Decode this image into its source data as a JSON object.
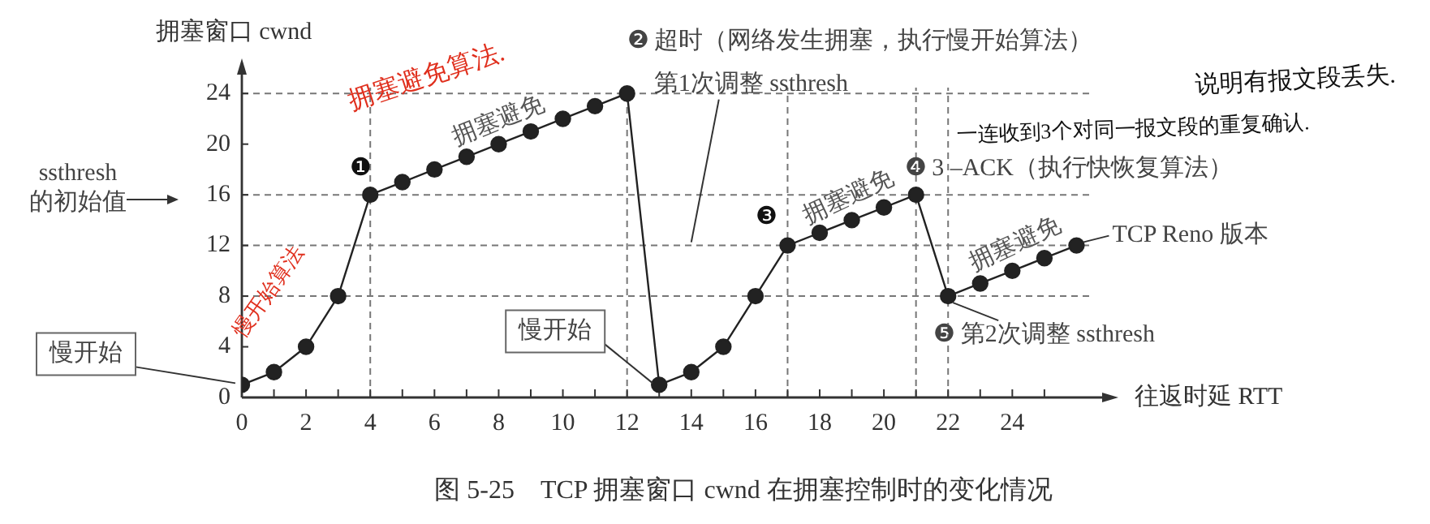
{
  "chart_data": {
    "type": "line",
    "title": "图 5-25　TCP 拥塞窗口 cwnd 在拥塞控制时的变化情况",
    "xlabel": "往返时延 RTT",
    "ylabel": "拥塞窗口 cwnd",
    "x": [
      0,
      1,
      2,
      3,
      4,
      5,
      6,
      7,
      8,
      9,
      10,
      11,
      12,
      13,
      14,
      15,
      16,
      17,
      18,
      19,
      20,
      21,
      22,
      23,
      24,
      25,
      26
    ],
    "series": [
      {
        "color": "#222222",
        "values": [
          1,
          2,
          4,
          8,
          16,
          17,
          18,
          19,
          20,
          21,
          22,
          23,
          24,
          1,
          2,
          4,
          8,
          12,
          13,
          14,
          15,
          16,
          8,
          9,
          10,
          11,
          12
        ]
      }
    ],
    "xlim": [
      0,
      27
    ],
    "xticks": [
      0,
      {
        "value": 1,
        "label": null
      },
      2,
      {
        "value": 3,
        "label": null
      },
      4,
      {
        "value": 5,
        "label": null
      },
      6,
      {
        "value": 7,
        "label": null
      },
      8,
      {
        "value": 9,
        "label": null
      },
      10,
      {
        "value": 11,
        "label": null
      },
      12,
      {
        "value": 13,
        "label": null
      },
      14,
      {
        "value": 15,
        "label": null
      },
      16,
      {
        "value": 17,
        "label": null
      },
      18,
      {
        "value": 19,
        "label": null
      },
      20,
      {
        "value": 21,
        "label": null
      },
      22,
      {
        "value": 23,
        "label": null
      },
      24,
      {
        "value": 25,
        "label": null
      }
    ],
    "ylim": [
      0,
      26
    ],
    "yticks": [
      0,
      4,
      8,
      12,
      16,
      20,
      24
    ],
    "grid": false,
    "legend": false,
    "marker": "circle",
    "line_style": "solid",
    "ref_lines": [
      {
        "axis": "y",
        "value": 24,
        "color": "#777777",
        "line_style": "dashed"
      },
      {
        "axis": "y",
        "value": 16,
        "color": "#777777",
        "line_style": "dashed"
      },
      {
        "axis": "y",
        "value": 12,
        "color": "#777777",
        "line_style": "dashed"
      },
      {
        "axis": "y",
        "value": 8,
        "color": "#777777",
        "line_style": "dashed"
      },
      {
        "axis": "x",
        "value": 4,
        "color": "#777777",
        "line_style": "dashed"
      },
      {
        "axis": "x",
        "value": 12,
        "color": "#777777",
        "line_style": "dashed"
      },
      {
        "axis": "x",
        "value": 17,
        "color": "#777777",
        "line_style": "dashed"
      },
      {
        "axis": "x",
        "value": 21,
        "color": "#777777",
        "line_style": "dashed"
      },
      {
        "axis": "x",
        "value": 22,
        "color": "#777777",
        "line_style": "dashed"
      }
    ],
    "annotations": [
      {
        "text": "❶",
        "x": 4,
        "y": 16
      },
      {
        "text": "❷ 超时（网络发生拥塞，执行慢开始算法）",
        "x": 12,
        "y": 24
      },
      {
        "text": "第1次调整 ssthresh",
        "x": 14,
        "y": 12
      },
      {
        "text": "❸",
        "x": 17,
        "y": 12
      },
      {
        "text": "❹ 3 –ACK（执行快恢复算法）",
        "x": 21,
        "y": 16
      },
      {
        "text": "❺ 第2次调整 ssthresh",
        "x": 22,
        "y": 8
      },
      {
        "text": "拥塞避免",
        "x": 8,
        "y": 20
      },
      {
        "text": "拥塞避免",
        "x": 19,
        "y": 14
      },
      {
        "text": "拥塞避免",
        "x": 24,
        "y": 10
      },
      {
        "text": "TCP Reno 版本",
        "x": 26,
        "y": 12
      },
      {
        "text": "慢开始",
        "x": 0,
        "y": 1
      },
      {
        "text": "慢开始",
        "x": 13,
        "y": 1
      },
      "ssthresh 的初始值",
      "拥塞避免算法.",
      "慢开始算法",
      "说明有报文段丢失.",
      "一连收到3个对同一报文段的重复确认."
    ]
  }
}
